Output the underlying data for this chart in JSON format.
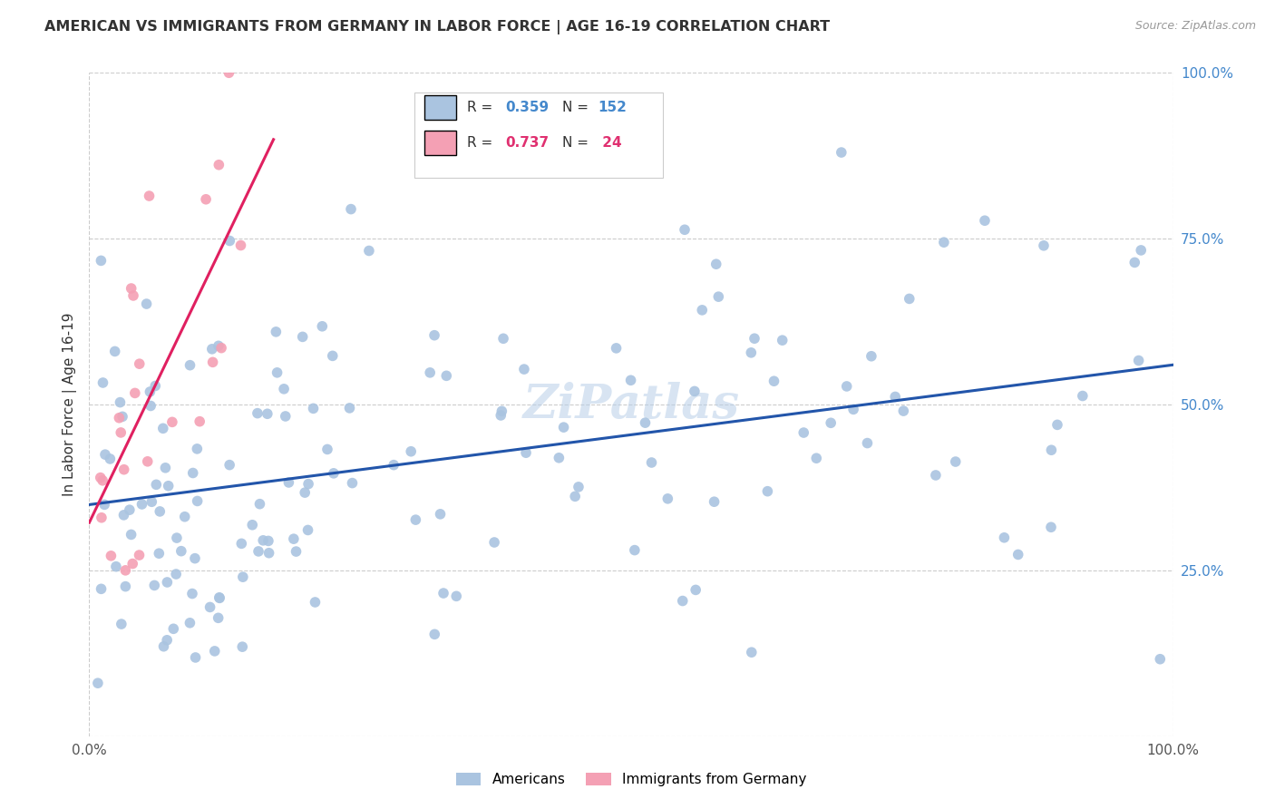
{
  "title": "AMERICAN VS IMMIGRANTS FROM GERMANY IN LABOR FORCE | AGE 16-19 CORRELATION CHART",
  "source": "Source: ZipAtlas.com",
  "ylabel": "In Labor Force | Age 16-19",
  "xlim": [
    0,
    1
  ],
  "ylim": [
    0,
    1
  ],
  "ytick_labels": [
    "",
    "25.0%",
    "50.0%",
    "75.0%",
    "100.0%"
  ],
  "ytick_values": [
    0,
    0.25,
    0.5,
    0.75,
    1.0
  ],
  "xtick_labels": [
    "0.0%",
    "100.0%"
  ],
  "xtick_values": [
    0,
    1
  ],
  "color_american": "#aac4e0",
  "color_german": "#f4a0b4",
  "line_color_american": "#2255aa",
  "line_color_german": "#e02060",
  "r_american": 0.359,
  "n_american": 152,
  "r_german": 0.737,
  "n_german": 24,
  "watermark": "ZiPatlas",
  "seed_american": 77,
  "seed_german": 15
}
